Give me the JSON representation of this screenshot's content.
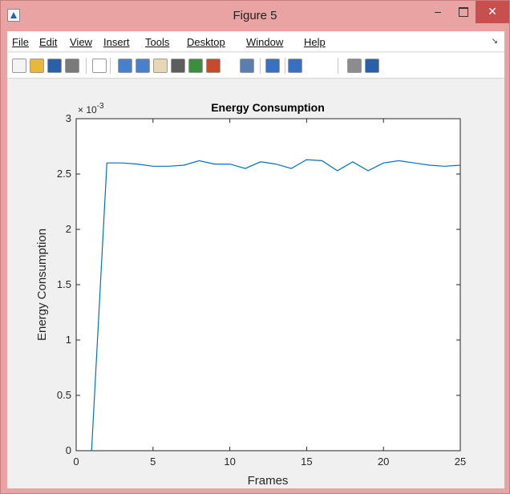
{
  "window": {
    "title": "Figure 5",
    "minimize_glyph": "–",
    "close_glyph": "✕"
  },
  "menubar": {
    "items": [
      {
        "label": "File"
      },
      {
        "label": "Edit"
      },
      {
        "label": "View"
      },
      {
        "label": "Insert"
      },
      {
        "label": "Tools"
      },
      {
        "label": "Desktop"
      },
      {
        "label": "Window"
      },
      {
        "label": "Help"
      }
    ],
    "overflow_glyph": "↘"
  },
  "toolbar": {
    "buttons": [
      {
        "icon": "new-figure-icon",
        "color": "#f4f4f4"
      },
      {
        "icon": "open-file-icon",
        "color": "#e8b83a"
      },
      {
        "icon": "save-icon",
        "color": "#2b5fa8"
      },
      {
        "icon": "print-icon",
        "color": "#7a7a7a"
      },
      {
        "icon": "edit-plot-arrow-icon",
        "color": "#ffffff"
      },
      {
        "icon": "zoom-in-icon",
        "color": "#4a7fc9"
      },
      {
        "icon": "zoom-out-icon",
        "color": "#4a7fc9"
      },
      {
        "icon": "pan-hand-icon",
        "color": "#e8d7b5"
      },
      {
        "icon": "rotate-3d-icon",
        "color": "#5d5d5d"
      },
      {
        "icon": "data-cursor-icon",
        "color": "#3c8d3c"
      },
      {
        "icon": "brush-icon",
        "color": "#c84a2c"
      },
      {
        "icon": "link-plot-icon",
        "color": "#5a7fae"
      },
      {
        "icon": "insert-colorbar-icon",
        "color": "#3b6fc2"
      },
      {
        "icon": "insert-legend-icon",
        "color": "#3b6fc2"
      },
      {
        "icon": "hide-plot-tools-icon",
        "color": "#8c8c8c"
      },
      {
        "icon": "show-plot-tools-icon",
        "color": "#2b5fa8"
      }
    ]
  },
  "chart_data": {
    "type": "line",
    "title": "Energy Consumption",
    "xlabel": "Frames",
    "ylabel": "Energy Consumption",
    "y_exponent_label": "× 10",
    "y_exponent_power": "-3",
    "xlim": [
      0,
      25
    ],
    "ylim": [
      0,
      3
    ],
    "xticks": [
      0,
      5,
      10,
      15,
      20,
      25
    ],
    "xtick_labels": [
      "0",
      "5",
      "10",
      "15",
      "20",
      "25"
    ],
    "yticks": [
      0,
      0.5,
      1,
      1.5,
      2,
      2.5,
      3
    ],
    "ytick_labels": [
      "0",
      "0.5",
      "1",
      "1.5",
      "2",
      "2.5",
      "3"
    ],
    "grid": false,
    "line_color": "#0072bd",
    "series": [
      {
        "x": [
          1,
          2,
          3,
          4,
          5,
          6,
          7,
          8,
          9,
          10,
          11,
          12,
          13,
          14,
          15,
          16,
          17,
          18,
          19,
          20,
          21,
          22,
          23,
          24,
          25
        ],
        "values": [
          0,
          2.6,
          2.6,
          2.59,
          2.57,
          2.57,
          2.58,
          2.62,
          2.59,
          2.59,
          2.55,
          2.61,
          2.59,
          2.55,
          2.63,
          2.62,
          2.53,
          2.61,
          2.53,
          2.6,
          2.62,
          2.6,
          2.58,
          2.57,
          2.58
        ]
      }
    ]
  }
}
